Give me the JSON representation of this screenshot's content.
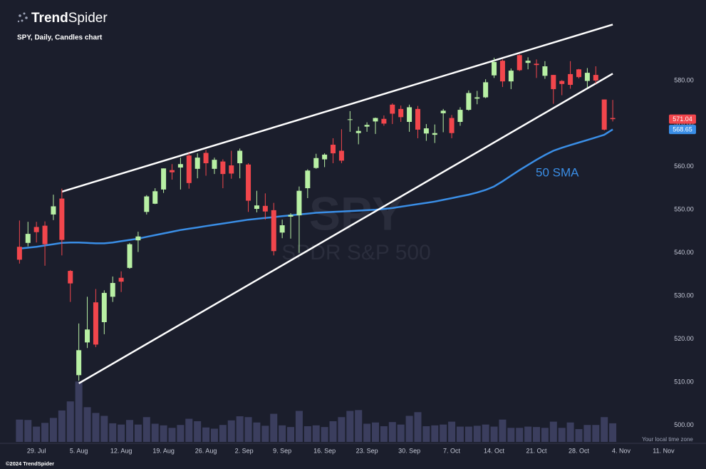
{
  "header": {
    "brand_bold": "Trend",
    "brand_light": "Spider",
    "chart_label": "SPY, Daily, Candles chart",
    "watermark_symbol": "SPY",
    "watermark_name": "SPDR S&P 500"
  },
  "footer": {
    "copyright": "©2024 TrendSpider",
    "timezone": "Your local time zone"
  },
  "chart_data": {
    "type": "candlestick",
    "open": [
      541.4,
      542.3,
      546.0,
      546.3,
      548.9,
      552.6,
      535.8,
      511.6,
      519.2,
      528.5,
      523.9,
      529.8,
      534.2,
      536.5,
      542.9,
      549.5,
      551.4,
      554.7,
      559.2,
      559.8,
      562.6,
      559.5,
      563.2,
      559.5,
      561.2,
      560.3,
      560.8,
      560.5,
      550.2,
      550.9,
      549.9,
      544.7,
      548.4,
      548.7,
      555.0,
      559.7,
      561.7,
      565.1,
      563.7,
      571.0,
      567.8,
      569.3,
      570.5,
      571.1,
      574.4,
      573.4,
      570.4,
      573.4,
      567.7,
      567.4,
      572.4,
      571.3,
      570.4,
      573.2,
      575.8,
      576.1,
      581.2,
      584.6,
      579.8,
      585.9,
      584.1,
      583.9,
      581.1,
      581.3,
      579.9,
      581.5,
      582.6,
      579.9,
      581.3,
      575.6,
      571.3
    ],
    "high": [
      547.5,
      547.2,
      547.2,
      547.3,
      553.5,
      554.9,
      536.0,
      523.6,
      529.8,
      531.6,
      531.3,
      534.5,
      535.7,
      542.3,
      544.9,
      553.4,
      555.0,
      559.6,
      560.6,
      562.1,
      563.2,
      563.1,
      563.9,
      562.1,
      561.7,
      563.7,
      564.2,
      560.8,
      554.4,
      553.8,
      551.6,
      547.7,
      549.2,
      555.4,
      559.4,
      563.0,
      563.1,
      566.6,
      568.7,
      572.9,
      569.3,
      570.3,
      571.4,
      571.9,
      574.7,
      574.2,
      574.4,
      574.1,
      569.9,
      569.8,
      573.4,
      572.0,
      573.8,
      577.7,
      577.6,
      580.3,
      585.3,
      584.9,
      582.8,
      586.1,
      585.4,
      584.9,
      584.5,
      581.3,
      580.1,
      584.5,
      582.7,
      582.9,
      583.3,
      575.6,
      575.5
    ],
    "low": [
      537.5,
      541.5,
      542.4,
      537.0,
      547.6,
      539.4,
      528.6,
      510.3,
      517.9,
      518.1,
      521.1,
      528.6,
      530.9,
      536.3,
      540.2,
      548.9,
      551.3,
      553.9,
      557.0,
      554.7,
      554.9,
      557.3,
      557.9,
      558.3,
      555.0,
      557.2,
      557.3,
      549.5,
      549.4,
      547.7,
      539.4,
      543.4,
      543.3,
      540.0,
      552.7,
      559.5,
      559.9,
      560.8,
      560.8,
      568.1,
      565.2,
      568.1,
      567.6,
      569.5,
      569.9,
      570.4,
      568.1,
      566.6,
      566.0,
      565.5,
      568.0,
      566.6,
      569.5,
      573.0,
      574.5,
      575.9,
      580.6,
      578.5,
      578.0,
      582.2,
      582.6,
      580.6,
      580.4,
      574.6,
      576.6,
      578.1,
      580.5,
      578.3,
      579.3,
      568.4,
      570.5
    ],
    "close": [
      538.4,
      544.4,
      544.8,
      542.0,
      550.8,
      543.0,
      532.9,
      517.4,
      522.2,
      518.7,
      530.7,
      533.0,
      533.3,
      542.0,
      543.8,
      553.1,
      554.3,
      559.6,
      558.7,
      560.6,
      556.2,
      562.1,
      560.8,
      561.6,
      558.3,
      558.4,
      563.7,
      552.1,
      551.0,
      549.6,
      540.4,
      546.4,
      548.8,
      554.4,
      559.1,
      562.0,
      562.8,
      563.1,
      561.4,
      571.0,
      568.3,
      569.7,
      571.3,
      570.0,
      572.3,
      571.5,
      573.8,
      568.6,
      568.9,
      567.8,
      573.0,
      567.8,
      573.2,
      577.1,
      576.1,
      579.6,
      584.3,
      579.8,
      582.3,
      582.4,
      584.6,
      583.6,
      583.3,
      578.0,
      579.2,
      579.0,
      580.8,
      581.8,
      580.0,
      568.6,
      571.04
    ],
    "volume": [
      54,
      53,
      37,
      46,
      58,
      76,
      98,
      146,
      84,
      70,
      63,
      45,
      42,
      53,
      42,
      60,
      44,
      40,
      34,
      41,
      56,
      50,
      35,
      32,
      41,
      52,
      62,
      60,
      47,
      39,
      68,
      40,
      36,
      75,
      38,
      40,
      36,
      50,
      60,
      75,
      77,
      44,
      47,
      38,
      48,
      42,
      63,
      72,
      38,
      40,
      42,
      49,
      37,
      37,
      39,
      42,
      37,
      54,
      34,
      34,
      37,
      36,
      34,
      49,
      34,
      47,
      31,
      41,
      41,
      60,
      45
    ],
    "up_color": "#b8f0a4",
    "down_color": "#f2464c",
    "volume_color": "#3b3e5e",
    "series": [
      {
        "name": "50 SMA",
        "color": "#3a8ee6",
        "values": [
          541.0,
          541.2,
          541.4,
          541.7,
          542.0,
          542.3,
          542.4,
          542.4,
          542.3,
          542.2,
          542.2,
          542.4,
          542.7,
          543.0,
          543.3,
          543.7,
          544.1,
          544.5,
          544.9,
          545.3,
          545.6,
          545.9,
          546.2,
          546.5,
          546.8,
          547.1,
          547.4,
          547.7,
          547.9,
          548.1,
          548.3,
          548.5,
          548.7,
          548.9,
          549.1,
          549.3,
          549.4,
          549.5,
          549.6,
          549.7,
          549.8,
          549.9,
          550.0,
          550.2,
          550.4,
          550.7,
          551.0,
          551.3,
          551.6,
          551.9,
          552.3,
          552.7,
          553.1,
          553.5,
          554.0,
          554.6,
          555.4,
          556.6,
          557.9,
          559.2,
          560.4,
          561.6,
          562.7,
          563.7,
          564.4,
          565.0,
          565.6,
          566.2,
          566.8,
          567.4,
          568.65
        ]
      }
    ],
    "trendlines": [
      {
        "x": [
          5,
          70
        ],
        "y": [
          554.2,
          593.0
        ]
      },
      {
        "x": [
          7,
          70
        ],
        "y": [
          509.7,
          581.6
        ]
      }
    ],
    "trendline_color": "#ffffff",
    "ylim": [
      496,
      596
    ],
    "yticks": [
      {
        "value": 500,
        "label": "500.00"
      },
      {
        "value": 510,
        "label": "510.00"
      },
      {
        "value": 520,
        "label": "520.00"
      },
      {
        "value": 530,
        "label": "530.00"
      },
      {
        "value": 540,
        "label": "540.00"
      },
      {
        "value": 550,
        "label": "550.00"
      },
      {
        "value": 560,
        "label": "560.00"
      },
      {
        "value": 570,
        "label": "570.00"
      },
      {
        "value": 580,
        "label": "580.00"
      }
    ],
    "xlim": [
      -2.3,
      80.5
    ],
    "xticks": [
      {
        "value": 2,
        "label": "29. Jul"
      },
      {
        "value": 7,
        "label": "5. Aug"
      },
      {
        "value": 12,
        "label": "12. Aug"
      },
      {
        "value": 17,
        "label": "19. Aug"
      },
      {
        "value": 22,
        "label": "26. Aug"
      },
      {
        "value": 26.5,
        "label": "2. Sep"
      },
      {
        "value": 31,
        "label": "9. Sep"
      },
      {
        "value": 36,
        "label": "16. Sep"
      },
      {
        "value": 41,
        "label": "23. Sep"
      },
      {
        "value": 46,
        "label": "30. Sep"
      },
      {
        "value": 51,
        "label": "7. Oct"
      },
      {
        "value": 56,
        "label": "14. Oct"
      },
      {
        "value": 61,
        "label": "21. Oct"
      },
      {
        "value": 66,
        "label": "28. Oct"
      },
      {
        "value": 71,
        "label": "4. Nov"
      },
      {
        "value": 76,
        "label": "11. Nov"
      }
    ],
    "grid": false
  }
}
